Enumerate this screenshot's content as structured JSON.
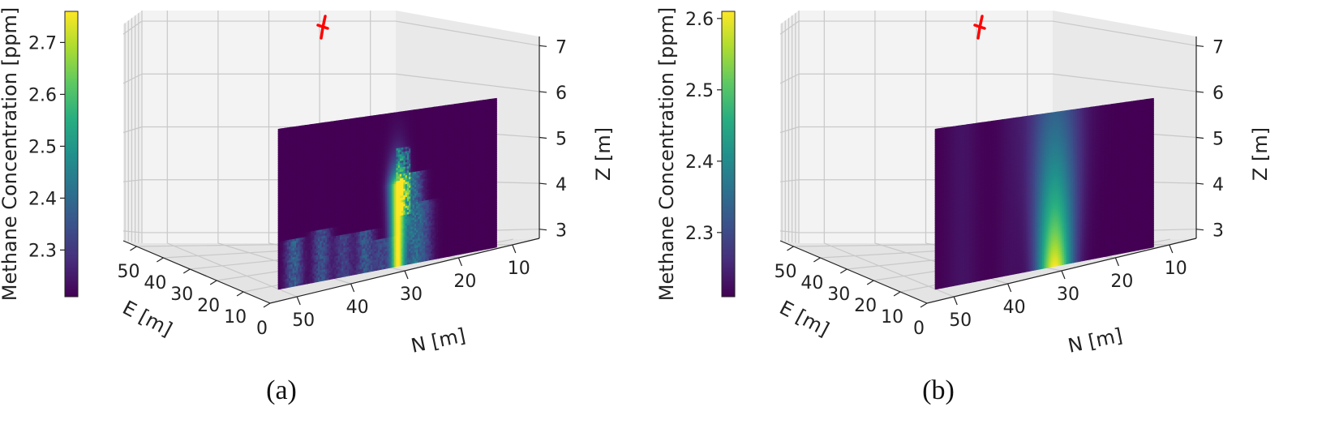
{
  "chart_data": [
    {
      "type": "heatmap",
      "caption": "(a)",
      "colorbar": {
        "label": "Methane Concentration [ppm]",
        "ticks": [
          "2.3",
          "2.4",
          "2.5",
          "2.6",
          "2.7"
        ],
        "range": [
          2.21,
          2.76
        ],
        "colormap": "viridis"
      },
      "xlabel": "E [m]",
      "ylabel": "N [m]",
      "zlabel": "Z [m]",
      "e_ticks": [
        "50",
        "40",
        "30",
        "20",
        "10",
        "0"
      ],
      "n_ticks": [
        "50",
        "40",
        "30",
        "20",
        "10"
      ],
      "z_ticks": [
        "3",
        "4",
        "5",
        "6",
        "7"
      ],
      "xlim": [
        0,
        55
      ],
      "ylim": [
        5,
        55
      ],
      "zlim": [
        2.8,
        7.2
      ],
      "wind_indicator_color": "#ff0000",
      "plane": {
        "n_range": [
          12,
          52
        ],
        "z_range": [
          3,
          6
        ],
        "peak_n": 30,
        "max_value": 2.76,
        "background_value": 2.21,
        "style": "turbulent"
      }
    },
    {
      "type": "heatmap",
      "caption": "(b)",
      "colorbar": {
        "label": "Methane Concentration [ppm]",
        "ticks": [
          "2.3",
          "2.4",
          "2.5",
          "2.6"
        ],
        "range": [
          2.21,
          2.61
        ],
        "colormap": "viridis"
      },
      "xlabel": "E [m]",
      "ylabel": "N [m]",
      "zlabel": "Z [m]",
      "e_ticks": [
        "50",
        "40",
        "30",
        "20",
        "10",
        "0"
      ],
      "n_ticks": [
        "50",
        "40",
        "30",
        "20",
        "10"
      ],
      "z_ticks": [
        "3",
        "4",
        "5",
        "6",
        "7"
      ],
      "xlim": [
        0,
        55
      ],
      "ylim": [
        5,
        55
      ],
      "zlim": [
        2.8,
        7.2
      ],
      "wind_indicator_color": "#ff0000",
      "plane": {
        "n_range": [
          12,
          52
        ],
        "z_range": [
          3,
          6
        ],
        "peak_n": 30,
        "max_value": 2.61,
        "background_value": 2.21,
        "style": "smooth"
      }
    }
  ]
}
